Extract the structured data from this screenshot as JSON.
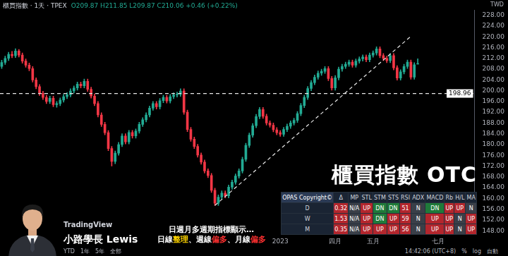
{
  "chart_data": {
    "type": "candlestick",
    "title": "櫃買指數 · 1天 · TPEX",
    "subtitle": "O209.87 H211.85 L209.87 C210.06 +0.46 (+0.22%)",
    "categories": [
      null,
      null,
      null,
      null,
      null,
      null,
      null,
      null,
      null,
      null,
      null,
      null,
      null,
      null,
      null,
      null,
      null,
      null,
      null,
      null,
      null,
      null,
      null,
      null,
      null,
      null,
      null,
      null,
      null,
      null,
      null,
      null,
      null,
      null,
      null,
      null,
      null,
      null,
      null,
      null,
      null,
      null,
      null,
      null,
      null,
      null,
      null,
      null,
      null,
      null,
      null,
      null,
      null,
      null,
      null,
      null,
      null,
      null,
      null,
      null,
      null,
      null,
      null,
      null,
      null,
      null,
      null,
      null,
      null,
      null,
      null,
      null,
      null,
      null,
      null,
      null,
      null,
      null,
      null,
      null,
      null,
      "2023",
      null,
      null,
      null,
      null,
      null,
      null,
      null,
      null,
      null,
      null,
      null,
      null,
      null,
      null,
      null,
      "四月",
      null,
      null,
      null,
      null,
      null,
      null,
      null,
      null,
      null,
      null,
      "五月",
      null,
      null,
      null,
      null,
      null,
      null,
      null,
      null,
      null,
      null,
      null,
      null,
      null,
      null,
      null,
      null,
      null,
      null,
      "七月",
      null,
      null,
      null,
      null,
      null,
      null,
      null,
      null,
      null,
      null
    ],
    "open": [
      209.0,
      210.5,
      212.0,
      213.5,
      213.0,
      214.7,
      213.2,
      211.0,
      209.5,
      208.2,
      204.0,
      201.5,
      199.0,
      197.5,
      196.0,
      197.2,
      194.8,
      195.2,
      196.5,
      197.8,
      198.5,
      199.9,
      201.0,
      202.4,
      201.8,
      203.5,
      200.5,
      198.0,
      195.2,
      191.0,
      187.5,
      184.4,
      178.5,
      173.7,
      176.8,
      180.0,
      183.2,
      181.0,
      184.5,
      183.2,
      185.0,
      187.5,
      189.2,
      191.0,
      193.5,
      195.2,
      194.0,
      196.3,
      197.5,
      196.2,
      197.8,
      198.4,
      198.7,
      199.9,
      192.0,
      185.6,
      182.0,
      179.3,
      176.1,
      173.5,
      170.2,
      168.5,
      163.0,
      158.2,
      160.5,
      162.0,
      161.0,
      164.2,
      166.0,
      168.3,
      170.2,
      174.5,
      179.7,
      183.5,
      187.0,
      190.4,
      193.0,
      190.5,
      188.0,
      187.2,
      185.5,
      184.4,
      183.8,
      185.6,
      186.8,
      188.0,
      189.0,
      191.5,
      194.5,
      197.5,
      200.8,
      203.0,
      205.0,
      206.5,
      207.2,
      208.2,
      204.5,
      201.0,
      204.8,
      208.0,
      209.0,
      209.8,
      210.6,
      209.5,
      211.0,
      211.8,
      212.5,
      211.5,
      213.2,
      214.0,
      215.5,
      213.0,
      212.0,
      211.2,
      213.0,
      208.5,
      204.7,
      207.0,
      209.0,
      210.6,
      205.0,
      209.87,
      null,
      null,
      null,
      null,
      null,
      null,
      null,
      null,
      null,
      null,
      null,
      null,
      null,
      null,
      null,
      null
    ],
    "high": [
      211.3,
      212.8,
      214.3,
      214.6,
      215.6,
      215.3,
      214.0,
      211.8,
      210.3,
      209.0,
      204.8,
      202.3,
      199.8,
      198.3,
      198.0,
      198.0,
      196.0,
      197.3,
      198.6,
      199.3,
      200.7,
      201.8,
      203.2,
      203.2,
      204.3,
      204.3,
      201.3,
      198.8,
      196.0,
      191.8,
      188.3,
      185.2,
      179.3,
      177.6,
      180.8,
      184.0,
      184.0,
      185.3,
      185.3,
      185.8,
      188.3,
      190.0,
      191.8,
      194.3,
      196.0,
      196.0,
      197.1,
      198.3,
      198.3,
      198.6,
      199.2,
      199.5,
      200.7,
      200.7,
      192.8,
      186.4,
      182.8,
      180.1,
      176.9,
      174.3,
      171.0,
      169.3,
      163.8,
      161.3,
      162.8,
      162.8,
      165.0,
      166.8,
      169.1,
      171.0,
      175.3,
      180.5,
      184.3,
      187.8,
      191.2,
      193.8,
      193.8,
      191.3,
      188.8,
      188.0,
      186.3,
      185.2,
      186.4,
      187.6,
      188.8,
      189.8,
      192.3,
      195.3,
      198.3,
      201.6,
      203.8,
      205.8,
      207.3,
      208.0,
      209.0,
      209.0,
      205.3,
      205.6,
      208.8,
      209.8,
      210.6,
      211.4,
      211.4,
      211.8,
      212.6,
      213.3,
      213.3,
      214.0,
      214.8,
      216.3,
      216.3,
      213.8,
      212.8,
      213.8,
      213.8,
      209.3,
      207.8,
      209.8,
      211.4,
      211.4,
      210.4,
      211.85,
      null,
      null,
      null,
      null,
      null,
      null,
      null,
      null,
      null,
      null,
      null,
      null,
      null,
      null,
      null,
      null
    ],
    "low": [
      208.2,
      209.7,
      211.2,
      212.2,
      212.3,
      212.5,
      210.2,
      208.7,
      207.4,
      203.2,
      200.7,
      198.2,
      196.7,
      195.2,
      195.2,
      194.0,
      193.8,
      194.4,
      195.7,
      197.0,
      197.7,
      199.1,
      200.2,
      201.0,
      201.0,
      199.7,
      197.2,
      194.4,
      190.2,
      186.7,
      183.6,
      177.7,
      172.0,
      172.9,
      176.0,
      179.2,
      180.2,
      180.2,
      182.4,
      182.4,
      184.2,
      186.7,
      188.4,
      190.2,
      192.7,
      193.2,
      193.2,
      195.5,
      195.4,
      195.4,
      197.0,
      197.6,
      197.9,
      191.2,
      184.8,
      181.2,
      178.5,
      175.3,
      172.7,
      169.4,
      167.7,
      162.2,
      157.4,
      157.4,
      159.7,
      160.2,
      160.2,
      163.4,
      165.2,
      167.5,
      169.4,
      173.7,
      178.9,
      182.7,
      186.2,
      189.6,
      189.7,
      187.2,
      186.4,
      184.7,
      183.6,
      183.0,
      183.0,
      184.8,
      186.0,
      187.2,
      188.2,
      190.7,
      193.7,
      196.7,
      200.0,
      202.2,
      204.2,
      205.7,
      206.4,
      203.7,
      200.2,
      200.2,
      204.0,
      207.2,
      208.2,
      209.0,
      208.7,
      208.7,
      210.2,
      211.0,
      210.7,
      210.7,
      212.4,
      213.2,
      212.2,
      211.2,
      210.4,
      210.4,
      207.7,
      203.9,
      203.9,
      206.2,
      208.2,
      204.2,
      204.2,
      209.87,
      null,
      null,
      null,
      null,
      null,
      null,
      null,
      null,
      null,
      null,
      null,
      null,
      null,
      null,
      null,
      null
    ],
    "close": [
      210.5,
      212.0,
      213.5,
      213.0,
      214.7,
      213.2,
      211.0,
      209.5,
      208.2,
      204.0,
      201.5,
      199.0,
      197.5,
      196.0,
      197.2,
      194.8,
      195.2,
      196.5,
      197.8,
      198.5,
      199.9,
      201.0,
      202.4,
      201.8,
      203.5,
      200.5,
      198.0,
      195.2,
      191.0,
      187.5,
      184.4,
      178.5,
      173.7,
      176.8,
      180.0,
      183.2,
      181.0,
      184.5,
      183.2,
      185.0,
      187.5,
      189.2,
      191.0,
      193.5,
      195.2,
      194.0,
      196.3,
      197.5,
      196.2,
      197.8,
      198.4,
      198.7,
      199.9,
      192.0,
      185.6,
      182.0,
      179.3,
      176.1,
      173.5,
      170.2,
      168.5,
      163.0,
      158.2,
      160.5,
      162.0,
      161.0,
      164.2,
      166.0,
      168.3,
      170.2,
      174.5,
      179.7,
      183.5,
      187.0,
      190.4,
      193.0,
      190.5,
      188.0,
      187.2,
      185.5,
      184.4,
      183.8,
      185.6,
      186.8,
      188.0,
      189.0,
      191.5,
      194.5,
      197.5,
      200.8,
      203.0,
      205.0,
      206.5,
      207.2,
      208.2,
      204.5,
      201.0,
      204.8,
      208.0,
      209.0,
      209.8,
      210.6,
      209.5,
      211.0,
      211.8,
      212.5,
      211.5,
      213.2,
      214.0,
      215.5,
      213.0,
      212.0,
      211.2,
      213.0,
      208.5,
      204.7,
      207.0,
      209.0,
      210.6,
      205.0,
      209.6,
      210.06,
      null,
      null,
      null,
      null,
      null,
      null,
      null,
      null,
      null,
      null,
      null,
      null,
      null,
      null,
      null,
      null
    ],
    "color": {
      "up": "#22ab94",
      "down": "#f23645"
    },
    "ylim": [
      148,
      230
    ],
    "yticks": [
      {
        "value": 148,
        "label": "148.00"
      },
      {
        "value": 152,
        "label": "152.00"
      },
      {
        "value": 156,
        "label": "156.00"
      },
      {
        "value": 160,
        "label": "160.00"
      },
      {
        "value": 164,
        "label": "164.00"
      },
      {
        "value": 168,
        "label": "168.00"
      },
      {
        "value": 172,
        "label": "172.00"
      },
      {
        "value": 176,
        "label": "176.00"
      },
      {
        "value": 180,
        "label": "180.00"
      },
      {
        "value": 184,
        "label": "184.00"
      },
      {
        "value": 188,
        "label": "188.00"
      },
      {
        "value": 192,
        "label": "192.00"
      },
      {
        "value": 196,
        "label": "196.00"
      },
      {
        "value": 200,
        "label": "200.00"
      },
      {
        "value": 204,
        "label": "204.00"
      },
      {
        "value": 208,
        "label": "208.00"
      },
      {
        "value": 212,
        "label": "212.00"
      },
      {
        "value": 216,
        "label": "216.00"
      },
      {
        "value": 220,
        "label": "220.00"
      },
      {
        "value": 224,
        "label": "224.00"
      },
      {
        "value": 228,
        "label": "228.00"
      }
    ],
    "grid": false,
    "legend": false,
    "annotations": [
      {
        "type": "hline",
        "y": 198.96,
        "label": "198.96",
        "line_style": "dashed"
      },
      {
        "type": "trendline",
        "x": [
          62,
          119
        ],
        "y": [
          157.4,
          220.2
        ],
        "line_style": "dashed"
      }
    ]
  },
  "overlay": {
    "currency": "TWD",
    "big_title": "櫃買指數 OTC",
    "table": {
      "header": [
        "OPAS Copyright©",
        "Δ",
        "MP",
        "STL",
        "STM",
        "STS",
        "RSI",
        "ADX",
        "MACD",
        "Rb",
        "H/L",
        "MA"
      ],
      "rows": [
        [
          "D",
          "0.32",
          "N/A",
          "UP",
          "DN",
          "DN",
          "51",
          "N",
          "DN",
          "UP",
          "UP",
          "N"
        ],
        [
          "W",
          "1.53",
          "N/A",
          "UP",
          "DN",
          "UP",
          "59",
          "N",
          "UP",
          "UP",
          "N",
          "UP"
        ],
        [
          "M",
          "0.35",
          "N/A",
          "UP",
          "UP",
          "UP",
          "56",
          "N",
          "UP",
          "UP",
          "N",
          "UP"
        ]
      ]
    },
    "logo": "TradingView",
    "presenter": "小路學長 Lewis",
    "caption": {
      "line1": "日週月多週期指標顯示…",
      "line2": [
        {
          "text": "日線"
        },
        {
          "text": "整理",
          "color": "#ffd400"
        },
        {
          "text": "、週線"
        },
        {
          "text": "偏多",
          "color": "#ff3030"
        },
        {
          "text": "、月線"
        },
        {
          "text": "偏多",
          "color": "#ff3030"
        }
      ]
    },
    "toolbar": {
      "left": [
        "YTD",
        "1年",
        "5年",
        "全部"
      ],
      "right": [
        "14:42:06 (UTC+8)",
        "%",
        "log",
        "自動"
      ]
    }
  }
}
